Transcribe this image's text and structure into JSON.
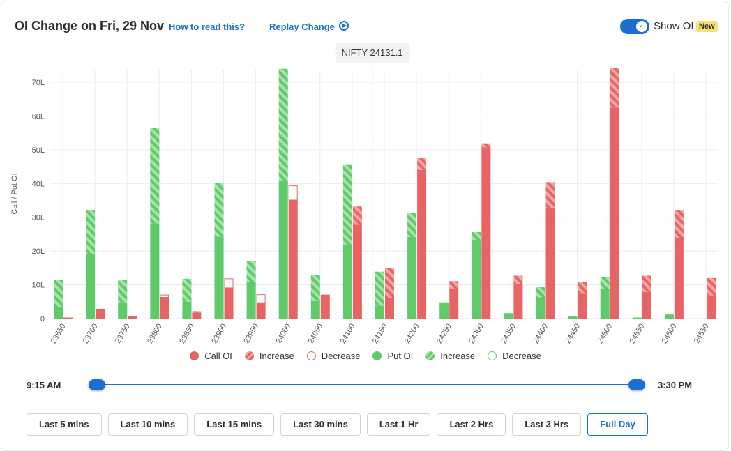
{
  "header": {
    "title": "OI Change on Fri, 29 Nov",
    "how_to_read": "How to read this?",
    "replay": "Replay Change",
    "show_oi_label": "Show OI",
    "new_badge": "New",
    "show_oi_on": true
  },
  "colors": {
    "call": "#e86464",
    "call_light": "#f4a8a8",
    "put": "#5fca6a",
    "put_light": "#a9e2ad",
    "grid": "#ececec",
    "accent": "#1b6fd1"
  },
  "chart_data": {
    "type": "bar",
    "ylabel": "Call / Put OI",
    "ylim": [
      0,
      74
    ],
    "yticks": [
      0,
      10,
      20,
      30,
      40,
      50,
      60,
      70
    ],
    "ytick_labels": [
      "0",
      "10L",
      "20L",
      "30L",
      "40L",
      "50L",
      "60L",
      "70L"
    ],
    "spot_label": "NIFTY 24131.1",
    "spot_value": 24131.1,
    "categories": [
      "23650",
      "23700",
      "23750",
      "23800",
      "23850",
      "23900",
      "23950",
      "24000",
      "24050",
      "24100",
      "24150",
      "24200",
      "24250",
      "24300",
      "24350",
      "24400",
      "24450",
      "24500",
      "24550",
      "24600",
      "24650"
    ],
    "series": [
      {
        "name": "Put OI",
        "values": [
          3.5,
          19.2,
          4.8,
          28.2,
          5,
          24.3,
          10.8,
          40.7,
          5.2,
          21.7,
          3.8,
          24.2,
          4.8,
          23.2,
          1.6,
          6.3,
          0.6,
          8.8,
          0.3,
          1.2,
          0
        ]
      },
      {
        "name": "Put OI Increase",
        "values": [
          8,
          13,
          6.6,
          28.3,
          6.8,
          15.8,
          6.1,
          33.3,
          7.6,
          24,
          10.1,
          7,
          0,
          2.4,
          0,
          3,
          0,
          3.6,
          0,
          0,
          0
        ]
      },
      {
        "name": "Put OI Decrease",
        "values": [
          0,
          0,
          0,
          0,
          0,
          0,
          0,
          0,
          0,
          0,
          0,
          0,
          0,
          0,
          0,
          0,
          0,
          0,
          0,
          0,
          0
        ]
      },
      {
        "name": "Call OI",
        "values": [
          0.3,
          2.9,
          0.7,
          6.3,
          1.8,
          9.1,
          4.7,
          35.1,
          7.1,
          27.8,
          6.1,
          44,
          8.9,
          50.7,
          10.2,
          32.8,
          7.4,
          62.5,
          7.9,
          23.8,
          6.9
        ]
      },
      {
        "name": "Call OI Increase",
        "values": [
          0,
          0,
          0,
          0,
          0.4,
          0,
          0,
          0,
          0,
          5.4,
          8.8,
          3.7,
          2.2,
          1.2,
          2.5,
          7.6,
          3.4,
          11.8,
          4.8,
          8.4,
          5.1
        ]
      },
      {
        "name": "Call OI Decrease",
        "values": [
          0,
          0,
          0,
          0.7,
          0,
          2.7,
          2.4,
          4.2,
          0,
          0,
          0,
          0,
          0,
          0,
          0,
          0,
          0,
          0,
          0,
          0,
          0
        ]
      }
    ],
    "legend": [
      {
        "label": "Call OI",
        "kind": "call"
      },
      {
        "label": "Increase",
        "kind": "call-increase"
      },
      {
        "label": "Decrease",
        "kind": "call-decrease"
      },
      {
        "label": "Put OI",
        "kind": "put"
      },
      {
        "label": "Increase",
        "kind": "put-increase"
      },
      {
        "label": "Decrease",
        "kind": "put-decrease"
      }
    ]
  },
  "slider": {
    "start_label": "9:15 AM",
    "end_label": "3:30 PM"
  },
  "range_buttons": [
    {
      "label": "Last 5 mins",
      "active": false
    },
    {
      "label": "Last 10 mins",
      "active": false
    },
    {
      "label": "Last 15 mins",
      "active": false
    },
    {
      "label": "Last 30 mins",
      "active": false
    },
    {
      "label": "Last 1 Hr",
      "active": false
    },
    {
      "label": "Last 2 Hrs",
      "active": false
    },
    {
      "label": "Last 3 Hrs",
      "active": false
    },
    {
      "label": "Full Day",
      "active": true
    }
  ]
}
